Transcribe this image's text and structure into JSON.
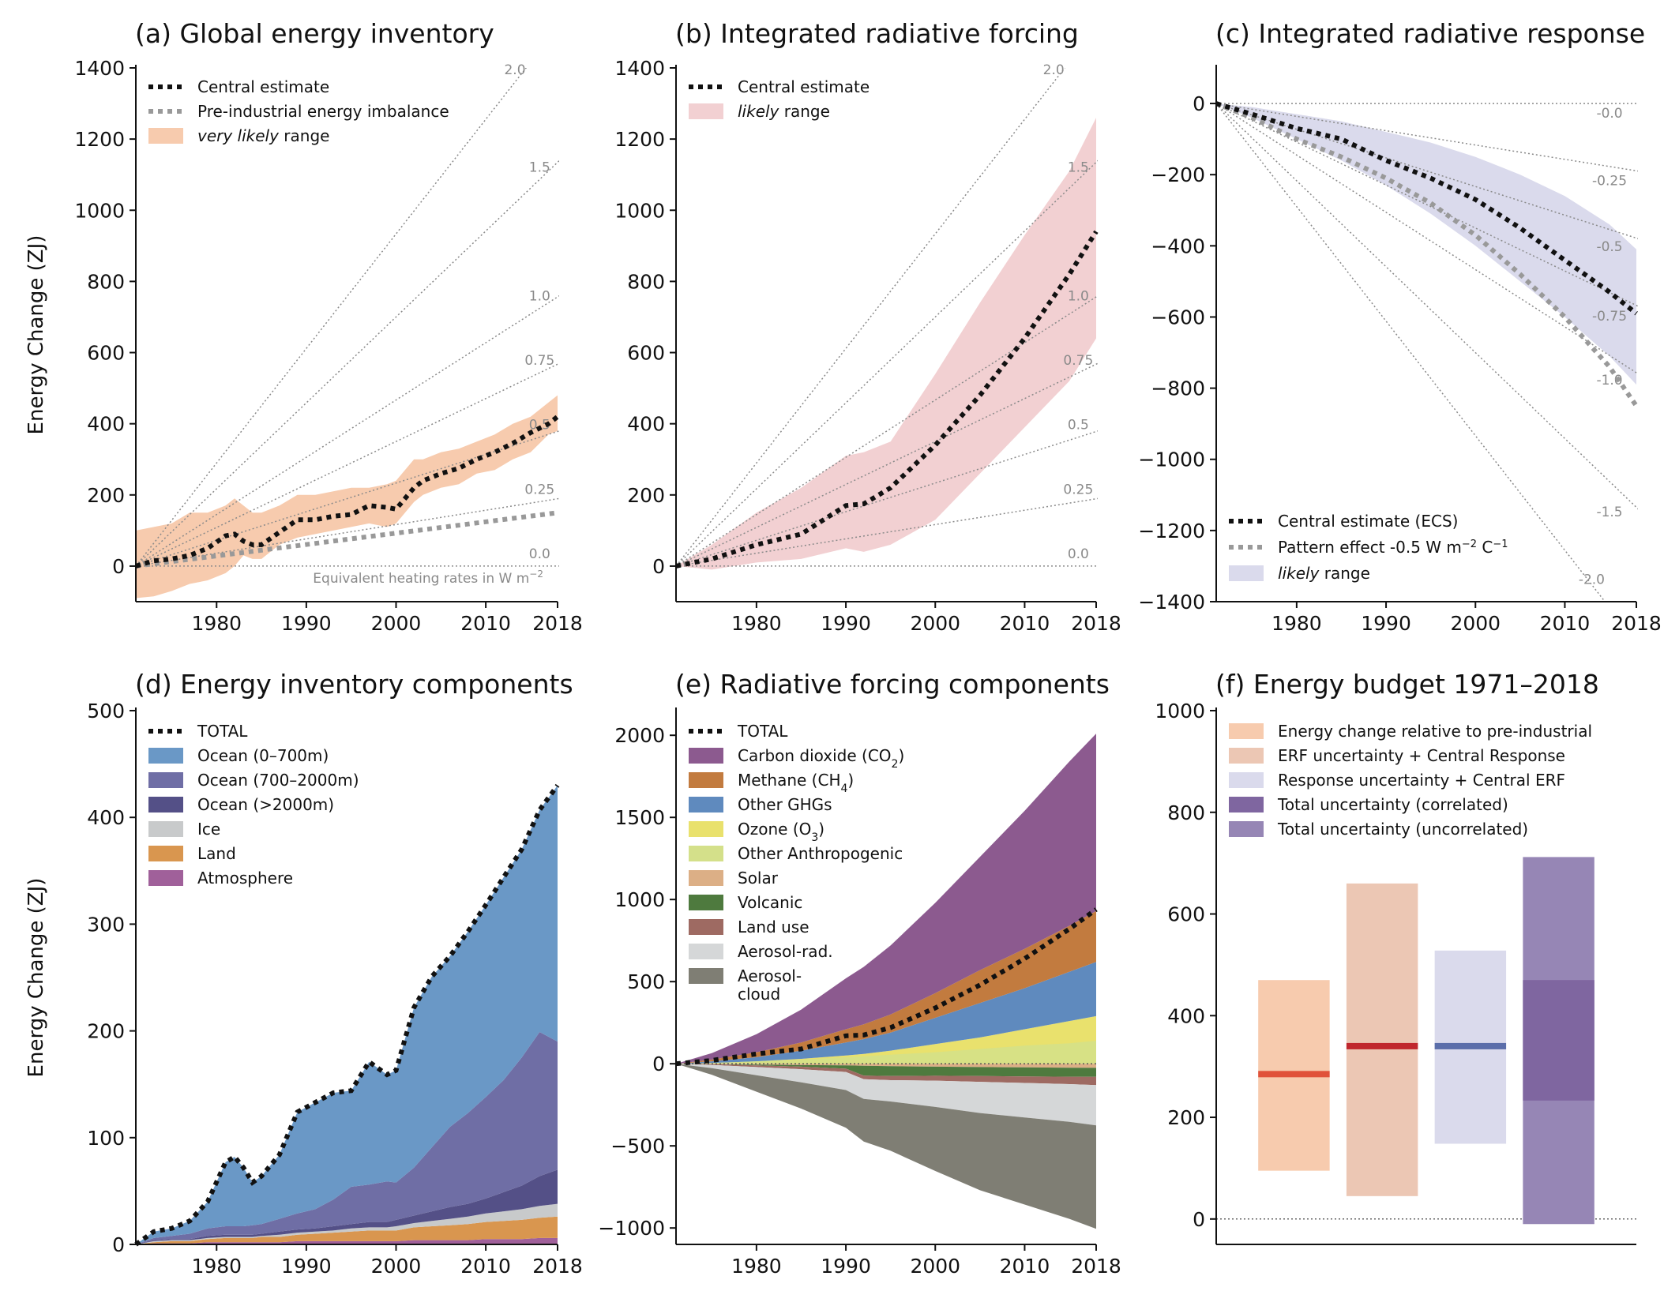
{
  "chart_data": [
    {
      "id": "a",
      "type": "line",
      "title": "(a) Global energy inventory",
      "ylabel": "Energy Change (ZJ)",
      "xlim": [
        1971,
        2018
      ],
      "ylim": [
        -100,
        1400
      ],
      "xticks": [
        1980,
        1990,
        2000,
        2010,
        2018
      ],
      "yticks": [
        0,
        200,
        400,
        600,
        800,
        1000,
        1200,
        1400
      ],
      "legend_position": "top-left",
      "legend": [
        {
          "label": "Central estimate",
          "style": "dotted",
          "color": "#111111"
        },
        {
          "label": "Pre-industrial energy imbalance",
          "style": "dotted",
          "color": "#999999"
        },
        {
          "label": "very likely",
          "label_suffix": " range",
          "style": "patch",
          "color": "#f7cbae"
        }
      ],
      "rate_lines_W_m2": [
        {
          "rate": 2.0,
          "label": "2.0"
        },
        {
          "rate": 1.5,
          "label": "1.5"
        },
        {
          "rate": 1.0,
          "label": "1.0"
        },
        {
          "rate": 0.75,
          "label": "0.75"
        },
        {
          "rate": 0.5,
          "label": "0.5"
        },
        {
          "rate": 0.25,
          "label": "0.25"
        },
        {
          "rate": 0.0,
          "label": "0.0"
        }
      ],
      "annotation": "Equivalent heating rates in W m",
      "annotation_sup": "−2",
      "x": [
        1971,
        1973,
        1975,
        1977,
        1979,
        1981,
        1982,
        1983,
        1984,
        1985,
        1987,
        1989,
        1991,
        1993,
        1995,
        1997,
        1999,
        2000,
        2002,
        2003,
        2005,
        2007,
        2009,
        2011,
        2013,
        2015,
        2017,
        2018
      ],
      "central": [
        0,
        15,
        20,
        30,
        50,
        85,
        90,
        70,
        60,
        60,
        95,
        130,
        130,
        140,
        145,
        170,
        165,
        160,
        220,
        240,
        260,
        275,
        300,
        320,
        345,
        375,
        400,
        420
      ],
      "lower": [
        -90,
        -85,
        -70,
        -50,
        -40,
        -20,
        0,
        30,
        20,
        20,
        60,
        80,
        90,
        100,
        110,
        120,
        110,
        120,
        180,
        200,
        220,
        230,
        260,
        270,
        300,
        320,
        370,
        380
      ],
      "upper": [
        100,
        110,
        120,
        150,
        150,
        170,
        190,
        170,
        150,
        150,
        170,
        200,
        200,
        210,
        220,
        220,
        230,
        240,
        300,
        300,
        320,
        330,
        350,
        370,
        400,
        420,
        460,
        480
      ],
      "preindustrial": [
        0,
        150
      ]
    },
    {
      "id": "b",
      "type": "line",
      "title": "(b) Integrated radiative forcing",
      "xlim": [
        1971,
        2018
      ],
      "ylim": [
        -100,
        1400
      ],
      "xticks": [
        1980,
        1990,
        2000,
        2010,
        2018
      ],
      "yticks": [
        0,
        200,
        400,
        600,
        800,
        1000,
        1200,
        1400
      ],
      "legend_position": "top-left",
      "legend": [
        {
          "label": "Central estimate",
          "style": "dotted",
          "color": "#111111"
        },
        {
          "label": "likely",
          "label_suffix": " range",
          "style": "patch",
          "color": "#f2d0d2"
        }
      ],
      "rate_lines_W_m2": [
        {
          "rate": 2.0,
          "label": "2.0"
        },
        {
          "rate": 1.5,
          "label": "1.5"
        },
        {
          "rate": 1.0,
          "label": "1.0"
        },
        {
          "rate": 0.75,
          "label": "0.75"
        },
        {
          "rate": 0.5,
          "label": "0.5"
        },
        {
          "rate": 0.25,
          "label": "0.25"
        },
        {
          "rate": 0.0,
          "label": "0.0"
        }
      ],
      "x": [
        1971,
        1975,
        1980,
        1985,
        1990,
        1992,
        1995,
        2000,
        2005,
        2010,
        2015,
        2018
      ],
      "central": [
        0,
        20,
        60,
        90,
        170,
        175,
        220,
        340,
        480,
        640,
        820,
        940
      ],
      "lower": [
        0,
        -10,
        10,
        20,
        50,
        40,
        60,
        130,
        260,
        390,
        520,
        640
      ],
      "upper": [
        0,
        60,
        150,
        220,
        310,
        320,
        350,
        540,
        740,
        930,
        1110,
        1260
      ]
    },
    {
      "id": "c",
      "type": "line",
      "title": "(c) Integrated radiative response",
      "xlim": [
        1971,
        2018
      ],
      "ylim": [
        -1400,
        100
      ],
      "xticks": [
        1980,
        1990,
        2000,
        2010,
        2018
      ],
      "yticks": [
        0,
        -200,
        -400,
        -600,
        -800,
        -1000,
        -1200,
        -1400
      ],
      "legend_position": "bottom-left",
      "legend": [
        {
          "label": "Central estimate (ECS)",
          "style": "dotted",
          "color": "#111111"
        },
        {
          "label": "Pattern effect -0.5 W m",
          "label_sup": "−2",
          "label_mid": " C",
          "label_sup2": "−1",
          "style": "dotted",
          "color": "#999999"
        },
        {
          "label": "likely",
          "label_suffix": " range",
          "style": "patch",
          "color": "#dadaec"
        }
      ],
      "rate_lines_W_m2": [
        {
          "rate": 0.0,
          "label": "-0.0"
        },
        {
          "rate": -0.25,
          "label": "-0.25"
        },
        {
          "rate": -0.5,
          "label": "-0.5"
        },
        {
          "rate": -0.75,
          "label": "-0.75"
        },
        {
          "rate": -1.0,
          "label": "-1.0"
        },
        {
          "rate": -1.5,
          "label": "-1.5"
        },
        {
          "rate": -2.0,
          "label": "-2.0"
        }
      ],
      "x": [
        1971,
        1975,
        1980,
        1985,
        1990,
        1995,
        2000,
        2005,
        2010,
        2015,
        2018
      ],
      "central": [
        0,
        -30,
        -70,
        -100,
        -160,
        -210,
        -270,
        -350,
        -440,
        -530,
        -590
      ],
      "pattern": [
        0,
        -40,
        -100,
        -150,
        -210,
        -280,
        -370,
        -480,
        -600,
        -740,
        -850
      ],
      "lower": [
        0,
        -40,
        -100,
        -160,
        -230,
        -310,
        -400,
        -500,
        -600,
        -710,
        -790
      ],
      "upper": [
        0,
        -10,
        -30,
        -50,
        -80,
        -110,
        -150,
        -200,
        -260,
        -340,
        -410
      ]
    },
    {
      "id": "d",
      "type": "area",
      "title": "(d) Energy inventory components",
      "ylabel": "Energy Change (ZJ)",
      "xlim": [
        1971,
        2018
      ],
      "ylim": [
        0,
        500
      ],
      "xticks": [
        1980,
        1990,
        2000,
        2010,
        2018
      ],
      "yticks": [
        0,
        100,
        200,
        300,
        400,
        500
      ],
      "legend_position": "top-left",
      "x": [
        1971,
        1973,
        1975,
        1977,
        1979,
        1981,
        1982,
        1983,
        1984,
        1985,
        1987,
        1989,
        1991,
        1993,
        1995,
        1997,
        1999,
        2000,
        2002,
        2004,
        2006,
        2008,
        2010,
        2012,
        2014,
        2016,
        2018
      ],
      "series": [
        {
          "name": "Atmosphere",
          "color": "#a0609a",
          "values": [
            0,
            1,
            1,
            1,
            2,
            2,
            2,
            2,
            2,
            2,
            2,
            3,
            3,
            3,
            3,
            3,
            3,
            3,
            4,
            4,
            4,
            4,
            5,
            5,
            5,
            6,
            6
          ]
        },
        {
          "name": "Land",
          "color": "#d9964f",
          "values": [
            0,
            1,
            2,
            2,
            3,
            4,
            4,
            4,
            4,
            5,
            5,
            6,
            7,
            8,
            9,
            10,
            10,
            10,
            12,
            13,
            14,
            15,
            16,
            17,
            18,
            19,
            20
          ]
        },
        {
          "name": "Ice",
          "color": "#c8cacb",
          "values": [
            0,
            1,
            1,
            1,
            1,
            1,
            1,
            1,
            1,
            1,
            2,
            2,
            2,
            2,
            3,
            3,
            3,
            4,
            4,
            5,
            6,
            7,
            8,
            9,
            10,
            11,
            12
          ]
        },
        {
          "name": "Ocean (>2000m)",
          "color": "#545087",
          "values": [
            0,
            1,
            1,
            1,
            2,
            2,
            2,
            2,
            2,
            2,
            3,
            3,
            3,
            4,
            4,
            5,
            5,
            6,
            7,
            9,
            11,
            12,
            14,
            18,
            22,
            28,
            32
          ]
        },
        {
          "name": "Ocean (700–2000m)",
          "color": "#6f6ea5",
          "values": [
            0,
            2,
            3,
            5,
            7,
            8,
            8,
            8,
            9,
            9,
            12,
            15,
            18,
            25,
            35,
            35,
            38,
            35,
            45,
            60,
            75,
            85,
            95,
            105,
            120,
            135,
            120
          ]
        },
        {
          "name": "Ocean (0–700m)",
          "color": "#6a98c6",
          "values": [
            0,
            6,
            7,
            12,
            25,
            60,
            65,
            55,
            40,
            45,
            60,
            95,
            100,
            100,
            90,
            115,
            100,
            105,
            150,
            160,
            160,
            170,
            180,
            190,
            195,
            208,
            240
          ]
        }
      ],
      "total_label": "TOTAL",
      "legend_order": [
        "Ocean (0–700m)",
        "Ocean (700–2000m)",
        "Ocean (>2000m)",
        "Ice",
        "Land",
        "Atmosphere"
      ]
    },
    {
      "id": "e",
      "type": "area",
      "title": "(e) Radiative forcing components",
      "xlim": [
        1971,
        2018
      ],
      "ylim": [
        -1100,
        2150
      ],
      "xticks": [
        1980,
        1990,
        2000,
        2010,
        2018
      ],
      "yticks": [
        2000,
        1500,
        1000,
        500,
        0,
        -500,
        -1000
      ],
      "legend_position": "top-left",
      "x": [
        1971,
        1975,
        1980,
        1985,
        1990,
        1992,
        1995,
        2000,
        2005,
        2010,
        2015,
        2018
      ],
      "positive_series": [
        {
          "name": "Ozone",
          "color": "#e9e16d",
          "values": [
            0,
            5,
            15,
            30,
            50,
            60,
            80,
            120,
            160,
            210,
            260,
            290
          ]
        },
        {
          "name": "Other GHGs",
          "color": "#5f8abe",
          "values": [
            0,
            10,
            25,
            50,
            80,
            90,
            110,
            160,
            210,
            250,
            300,
            330
          ]
        },
        {
          "name": "Methane",
          "color": "#c27b3f",
          "values": [
            0,
            10,
            30,
            50,
            80,
            90,
            110,
            150,
            200,
            240,
            280,
            310
          ]
        },
        {
          "name": "Carbon dioxide",
          "color": "#8c5a8f",
          "values": [
            0,
            40,
            110,
            200,
            310,
            350,
            420,
            550,
            690,
            840,
            1000,
            1080
          ]
        }
      ],
      "positive_overlay": {
        "name": "Other Anthropogenic",
        "color": "#d4e08a",
        "values": [
          0,
          5,
          15,
          25,
          40,
          45,
          55,
          70,
          90,
          110,
          125,
          140
        ]
      },
      "negative_series": [
        {
          "name": "Solar",
          "color": "#dcaf86",
          "values": [
            0,
            -2,
            -5,
            -8,
            -10,
            -12,
            -15,
            -18,
            -20,
            -22,
            -24,
            -25
          ]
        },
        {
          "name": "Volcanic",
          "color": "#4e7a3e",
          "values": [
            0,
            0,
            -5,
            -10,
            -20,
            -60,
            -60,
            -55,
            -55,
            -55,
            -55,
            -55
          ]
        },
        {
          "name": "Land use",
          "color": "#9e6a62",
          "values": [
            0,
            -5,
            -10,
            -15,
            -20,
            -22,
            -25,
            -30,
            -35,
            -40,
            -45,
            -50
          ]
        },
        {
          "name": "Aerosol-rad.",
          "color": "#d5d7d8",
          "values": [
            0,
            -20,
            -50,
            -80,
            -110,
            -120,
            -130,
            -160,
            -190,
            -210,
            -230,
            -245
          ]
        },
        {
          "name": "Aerosol-cloud",
          "color": "#7f7e74",
          "values": [
            0,
            -40,
            -100,
            -160,
            -230,
            -260,
            -300,
            -390,
            -470,
            -530,
            -590,
            -630
          ]
        }
      ],
      "total": [
        0,
        20,
        60,
        90,
        170,
        175,
        220,
        340,
        480,
        640,
        820,
        940
      ],
      "total_label": "TOTAL",
      "legend": [
        {
          "label": "Carbon dioxide (CO",
          "sub": "2",
          "tail": ")",
          "color": "#8c5a8f"
        },
        {
          "label": "Methane (CH",
          "sub": "4",
          "tail": ")",
          "color": "#c27b3f"
        },
        {
          "label": "Other GHGs",
          "sub": "",
          "tail": "",
          "color": "#5f8abe"
        },
        {
          "label": "Ozone (O",
          "sub": "3",
          "tail": ")",
          "color": "#e9e16d"
        },
        {
          "label": "Other Anthropogenic",
          "sub": "",
          "tail": "",
          "color": "#d4e08a"
        },
        {
          "label": "Solar",
          "sub": "",
          "tail": "",
          "color": "#dcaf86"
        },
        {
          "label": "Volcanic",
          "sub": "",
          "tail": "",
          "color": "#4e7a3e"
        },
        {
          "label": "Land use",
          "sub": "",
          "tail": "",
          "color": "#9e6a62"
        },
        {
          "label": "Aerosol-rad.",
          "sub": "",
          "tail": "",
          "color": "#d5d7d8"
        },
        {
          "label": "Aerosol-",
          "label2": "cloud",
          "sub": "",
          "tail": "",
          "color": "#7f7e74"
        }
      ]
    },
    {
      "id": "f",
      "type": "bar",
      "title": "(f) Energy budget 1971–2018",
      "ylim": [
        -50,
        1000
      ],
      "yticks": [
        0,
        200,
        400,
        600,
        800,
        1000
      ],
      "legend_position": "top-left",
      "legend": [
        {
          "label": "Energy change relative to pre-industrial",
          "color": "#f7cbae"
        },
        {
          "label": "ERF uncertainty + Central Response",
          "color": "#ecc7b4"
        },
        {
          "label": "Response uncertainty + Central ERF",
          "color": "#dadaec"
        },
        {
          "label": "Total uncertainty (correlated)",
          "color": "#7f66a0"
        },
        {
          "label": "Total uncertainty (uncorrelated)",
          "color": "#9686b5"
        }
      ],
      "bars": [
        {
          "low": 95,
          "high": 470,
          "central": 285,
          "color": "#f7cbae",
          "line_color": "#e0523a"
        },
        {
          "low": 45,
          "high": 660,
          "central": 340,
          "color": "#ecc7b4",
          "line_color": "#c0272d"
        },
        {
          "low": 148,
          "high": 528,
          "central": 340,
          "color": "#dadaec",
          "line_color": "#5b6eaa"
        },
        {
          "low": -10,
          "high": 712,
          "inner_low": 233,
          "inner_high": 470,
          "color": "#9686b5",
          "inner_color": "#7f66a0"
        }
      ]
    }
  ]
}
